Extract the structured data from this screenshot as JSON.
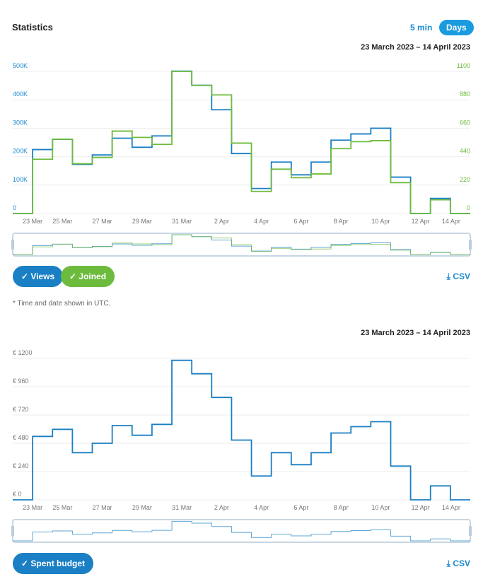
{
  "header": {
    "title": "Statistics",
    "toggle_5min": "5 min",
    "toggle_days": "Days"
  },
  "chart1": {
    "range": "23 March 2023 – 14 April 2023",
    "legend": [
      "Views",
      "Joined"
    ],
    "csv": "CSV",
    "note": "* Time and date shown in UTC."
  },
  "chart2": {
    "range": "23 March 2023 – 14 April 2023",
    "legend": [
      "Spent budget"
    ],
    "csv": "CSV"
  },
  "colors": {
    "views": "#1a7fc4",
    "joined": "#6dbb3d",
    "budget": "#1a7fc4",
    "accent": "#1a9be0"
  },
  "chart_data": [
    {
      "type": "line",
      "step": true,
      "title": "Statistics",
      "x": [
        "23 Mar",
        "24 Mar",
        "25 Mar",
        "26 Mar",
        "27 Mar",
        "28 Mar",
        "29 Mar",
        "30 Mar",
        "31 Mar",
        "1 Apr",
        "2 Apr",
        "3 Apr",
        "4 Apr",
        "5 Apr",
        "6 Apr",
        "7 Apr",
        "8 Apr",
        "9 Apr",
        "10 Apr",
        "11 Apr",
        "12 Apr",
        "13 Apr",
        "14 Apr"
      ],
      "xticks": [
        "23 Mar",
        "25 Mar",
        "27 Mar",
        "29 Mar",
        "31 Mar",
        "2 Apr",
        "4 Apr",
        "6 Apr",
        "8 Apr",
        "10 Apr",
        "12 Apr",
        "14 Apr"
      ],
      "y_left_ticks": [
        "0",
        "100K",
        "200K",
        "300K",
        "400K",
        "500K"
      ],
      "ylim_left": [
        0,
        500000
      ],
      "y_right_ticks": [
        "0",
        "220",
        "440",
        "660",
        "880",
        "1100"
      ],
      "ylim_right": [
        0,
        1100
      ],
      "series": [
        {
          "name": "Views",
          "axis": "left",
          "values": [
            0,
            225000,
            261000,
            173000,
            206000,
            265000,
            233000,
            273000,
            501000,
            451000,
            365000,
            211000,
            88000,
            181000,
            136000,
            181000,
            258000,
            280000,
            300000,
            128000,
            0,
            53000,
            0
          ]
        },
        {
          "name": "Joined",
          "axis": "right",
          "values": [
            0,
            420,
            575,
            385,
            434,
            638,
            589,
            535,
            1100,
            992,
            918,
            545,
            171,
            343,
            277,
            306,
            502,
            556,
            564,
            239,
            0,
            106,
            0
          ]
        }
      ]
    },
    {
      "type": "line",
      "step": true,
      "x": [
        "23 Mar",
        "24 Mar",
        "25 Mar",
        "26 Mar",
        "27 Mar",
        "28 Mar",
        "29 Mar",
        "30 Mar",
        "31 Mar",
        "1 Apr",
        "2 Apr",
        "3 Apr",
        "4 Apr",
        "5 Apr",
        "6 Apr",
        "7 Apr",
        "8 Apr",
        "9 Apr",
        "10 Apr",
        "11 Apr",
        "12 Apr",
        "13 Apr",
        "14 Apr"
      ],
      "xticks": [
        "23 Mar",
        "25 Mar",
        "27 Mar",
        "29 Mar",
        "31 Mar",
        "2 Apr",
        "4 Apr",
        "6 Apr",
        "8 Apr",
        "10 Apr",
        "12 Apr",
        "14 Apr"
      ],
      "y_left_ticks": [
        "€ 0",
        "€ 240",
        "€ 480",
        "€ 720",
        "€ 960",
        "€ 1200"
      ],
      "ylim_left": [
        0,
        1200
      ],
      "series": [
        {
          "name": "Spent budget",
          "axis": "left",
          "values": [
            0,
            538,
            598,
            400,
            480,
            630,
            548,
            640,
            1184,
            1070,
            869,
            507,
            202,
            400,
            298,
            400,
            567,
            621,
            663,
            286,
            0,
            118,
            0
          ]
        }
      ]
    }
  ]
}
